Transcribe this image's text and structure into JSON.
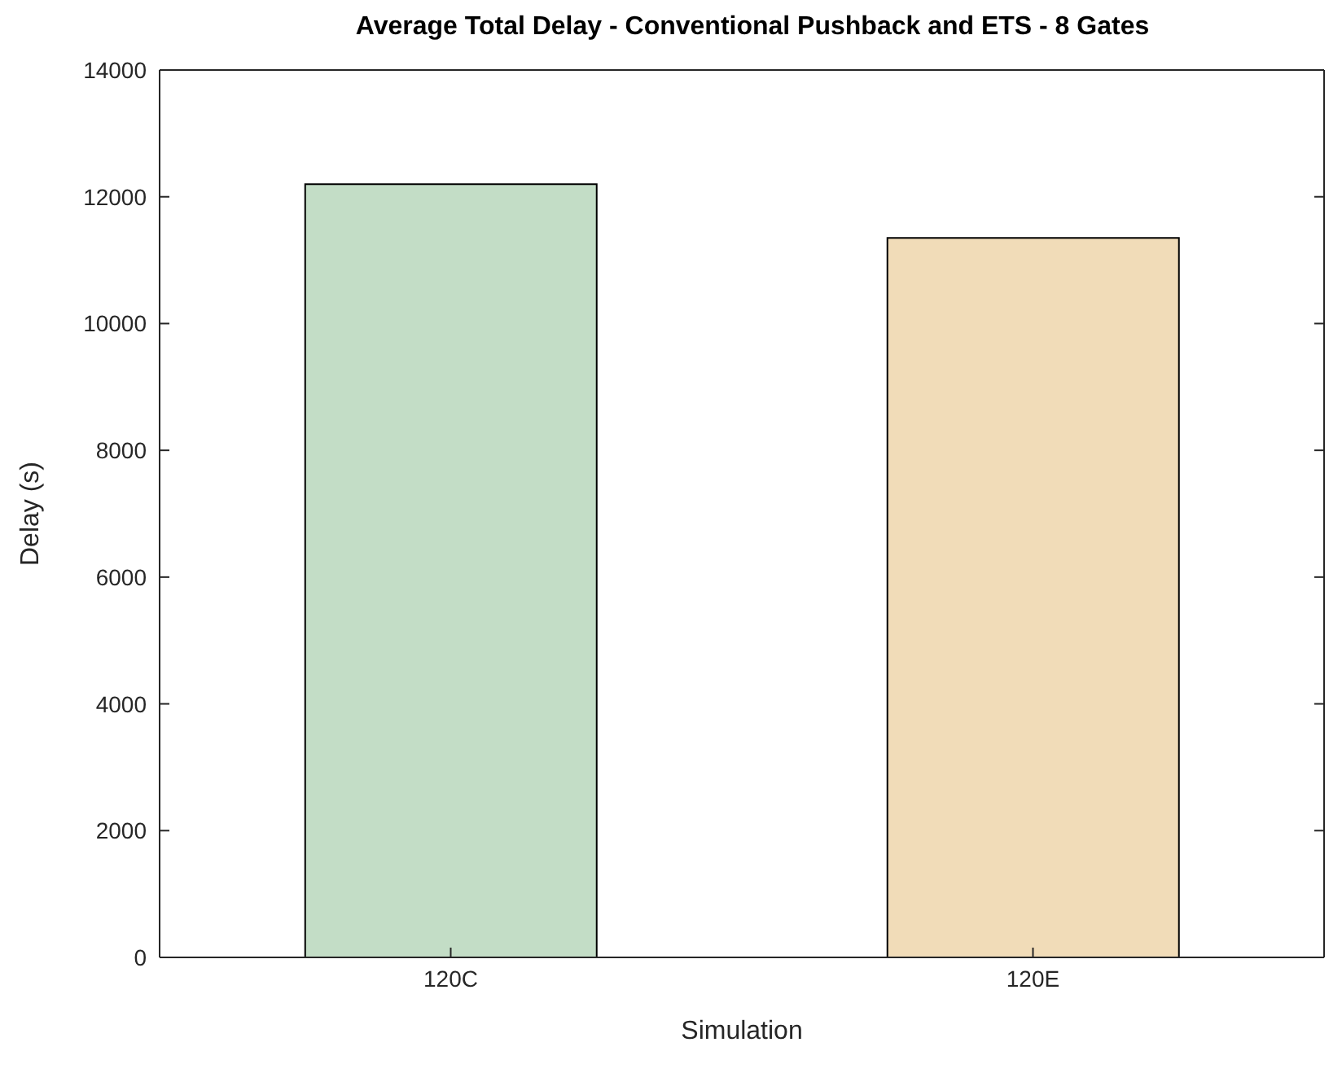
{
  "chart_data": {
    "type": "bar",
    "title": "Average Total Delay - Conventional Pushback and ETS - 8 Gates",
    "xlabel": "Simulation",
    "ylabel": "Delay (s)",
    "categories": [
      "120C",
      "120E"
    ],
    "values": [
      12200,
      11350
    ],
    "colors": [
      "#c3ddc6",
      "#f1dcb8"
    ],
    "ylim": [
      0,
      14000
    ],
    "yticks": [
      0,
      2000,
      4000,
      6000,
      8000,
      10000,
      12000,
      14000
    ],
    "grid": false
  }
}
